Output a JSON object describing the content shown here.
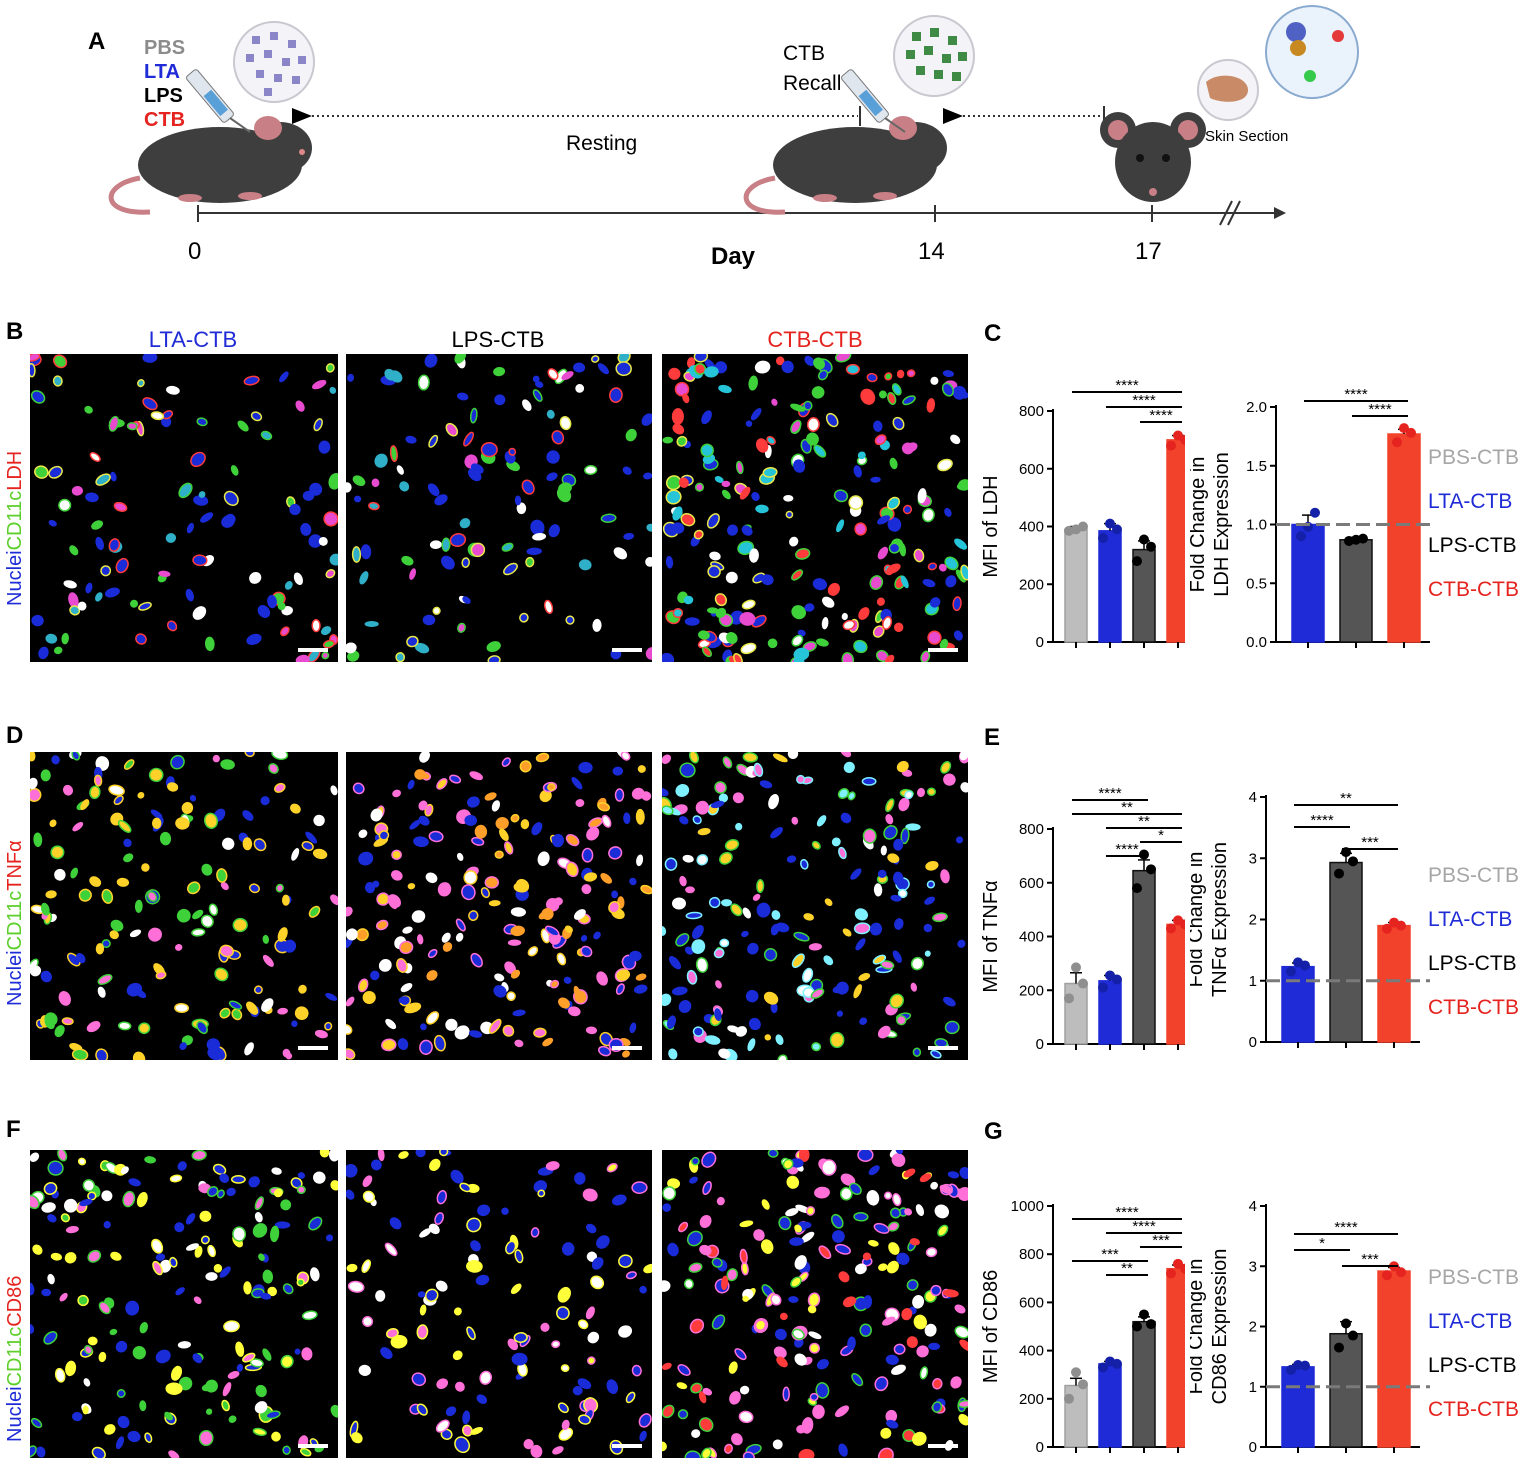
{
  "panelA": {
    "letter": "A",
    "treatments": [
      {
        "label": "PBS",
        "color": "#8c8c8c"
      },
      {
        "label": "LTA",
        "color": "#1f2bd6"
      },
      {
        "label": "LPS",
        "color": "#000000"
      },
      {
        "label": "CTB",
        "color": "#e5231f"
      }
    ],
    "recall_line1": "CTB",
    "recall_line2": "Recall",
    "resting": "Resting",
    "skin_section": "Skin Section",
    "day_label": "Day",
    "ticks": [
      "0",
      "14",
      "17"
    ]
  },
  "panel_letters": {
    "B": "B",
    "C": "C",
    "D": "D",
    "E": "E",
    "F": "F",
    "G": "G"
  },
  "column_titles": [
    {
      "label": "LTA-CTB",
      "color": "#1f2bd6"
    },
    {
      "label": "LPS-CTB",
      "color": "#000000"
    },
    {
      "label": "CTB-CTB",
      "color": "#e5231f"
    }
  ],
  "stain_rows": [
    {
      "nuclei": "Nuclei",
      "cd11c": "CD11c",
      "marker": "LDH"
    },
    {
      "nuclei": "Nuclei",
      "cd11c": "CD11c",
      "marker": "TNFα"
    },
    {
      "nuclei": "Nuclei",
      "cd11c": "CD11c",
      "marker": "CD86"
    }
  ],
  "legend": [
    {
      "label": "PBS-CTB",
      "color": "#a6a6a6"
    },
    {
      "label": "LTA-CTB",
      "color": "#1f2bd6"
    },
    {
      "label": "LPS-CTB",
      "color": "#000000"
    },
    {
      "label": "CTB-CTB",
      "color": "#e5231f"
    }
  ],
  "colors": {
    "PBS": "#bdbdbd",
    "LTA": "#1f2bd6",
    "LPS": "#555555",
    "CTB": "#f2422b"
  },
  "chart_data": [
    {
      "id": "C-mfi",
      "type": "bar",
      "ylabel": "MFI of LDH",
      "ylim": [
        0,
        800
      ],
      "yticks": [
        0,
        200,
        400,
        600,
        800
      ],
      "categories": [
        "PBS-CTB",
        "LTA-CTB",
        "LPS-CTB",
        "CTB-CTB"
      ],
      "values": [
        390,
        385,
        320,
        700
      ],
      "errors": [
        10,
        25,
        30,
        15
      ],
      "points": [
        [
          385,
          400,
          390
        ],
        [
          360,
          390,
          410
        ],
        [
          280,
          330,
          355
        ],
        [
          680,
          700,
          715
        ]
      ],
      "significance": [
        {
          "from": 0,
          "to": 3,
          "label": "****"
        },
        {
          "from": 1,
          "to": 3,
          "label": "****"
        },
        {
          "from": 2,
          "to": 3,
          "label": "****"
        }
      ]
    },
    {
      "id": "C-fold",
      "type": "bar",
      "ylabel": [
        "Fold Change in",
        "LDH Expression"
      ],
      "ylim": [
        0,
        2.0
      ],
      "yticks": [
        "0.0",
        "0.5",
        "1.0",
        "1.5",
        "2.0"
      ],
      "categories": [
        "LTA-CTB",
        "LPS-CTB",
        "CTB-CTB"
      ],
      "values": [
        1.0,
        0.87,
        1.77
      ],
      "errors": [
        0.08,
        0.02,
        0.04
      ],
      "points": [
        [
          0.9,
          1.1,
          0.98
        ],
        [
          0.86,
          0.88,
          0.87
        ],
        [
          1.7,
          1.78,
          1.82
        ]
      ],
      "reference_line": 1.0,
      "significance": [
        {
          "from": 0,
          "to": 2,
          "label": "****"
        },
        {
          "from": 1,
          "to": 2,
          "label": "****"
        }
      ]
    },
    {
      "id": "E-mfi",
      "type": "bar",
      "ylabel": "MFI of TNFα",
      "ylim": [
        0,
        800
      ],
      "yticks": [
        0,
        200,
        400,
        600,
        800
      ],
      "categories": [
        "PBS-CTB",
        "LTA-CTB",
        "LPS-CTB",
        "CTB-CTB"
      ],
      "values": [
        225,
        235,
        645,
        445
      ],
      "errors": [
        40,
        20,
        40,
        15
      ],
      "points": [
        [
          170,
          225,
          285
        ],
        [
          210,
          240,
          255
        ],
        [
          580,
          650,
          705
        ],
        [
          430,
          445,
          460
        ]
      ],
      "significance": [
        {
          "from": 0,
          "to": 2,
          "label": "****"
        },
        {
          "from": 0,
          "to": 3,
          "label": "**"
        },
        {
          "from": 1,
          "to": 3,
          "label": "**"
        },
        {
          "from": 2,
          "to": 3,
          "label": "*"
        },
        {
          "from": 1,
          "to": 2,
          "label": "****"
        }
      ]
    },
    {
      "id": "E-fold",
      "type": "bar",
      "ylabel": [
        "Fold Change in",
        "TNFα Expression"
      ],
      "ylim": [
        0,
        4
      ],
      "yticks": [
        0,
        1,
        2,
        3,
        4
      ],
      "categories": [
        "LTA-CTB",
        "LPS-CTB",
        "CTB-CTB"
      ],
      "values": [
        1.23,
        2.93,
        1.9
      ],
      "errors": [
        0.06,
        0.15,
        0.05
      ],
      "points": [
        [
          1.15,
          1.25,
          1.3
        ],
        [
          2.75,
          2.95,
          3.1
        ],
        [
          1.85,
          1.9,
          1.95
        ]
      ],
      "reference_line": 1.0,
      "significance": [
        {
          "from": 0,
          "to": 2,
          "label": "**"
        },
        {
          "from": 0,
          "to": 1,
          "label": "****"
        },
        {
          "from": 1,
          "to": 2,
          "label": "***"
        }
      ]
    },
    {
      "id": "G-mfi",
      "type": "bar",
      "ylabel": "MFI of CD86",
      "ylim": [
        0,
        1000
      ],
      "yticks": [
        0,
        200,
        400,
        600,
        800,
        1000
      ],
      "categories": [
        "PBS-CTB",
        "LTA-CTB",
        "LPS-CTB",
        "CTB-CTB"
      ],
      "values": [
        255,
        345,
        520,
        740
      ],
      "errors": [
        30,
        10,
        20,
        15
      ],
      "points": [
        [
          200,
          260,
          310
        ],
        [
          330,
          345,
          355
        ],
        [
          500,
          510,
          550
        ],
        [
          720,
          740,
          760
        ]
      ],
      "significance": [
        {
          "from": 0,
          "to": 3,
          "label": "****"
        },
        {
          "from": 1,
          "to": 3,
          "label": "****"
        },
        {
          "from": 2,
          "to": 3,
          "label": "***"
        },
        {
          "from": 0,
          "to": 2,
          "label": "***"
        },
        {
          "from": 1,
          "to": 2,
          "label": "**"
        }
      ]
    },
    {
      "id": "G-fold",
      "type": "bar",
      "ylabel": [
        "Fold Change in",
        "CD86 Expression"
      ],
      "ylim": [
        0,
        4
      ],
      "yticks": [
        0,
        1,
        2,
        3,
        4
      ],
      "categories": [
        "LTA-CTB",
        "LPS-CTB",
        "CTB-CTB"
      ],
      "values": [
        1.33,
        1.88,
        2.92
      ],
      "errors": [
        0.04,
        0.2,
        0.06
      ],
      "points": [
        [
          1.28,
          1.35,
          1.36
        ],
        [
          1.65,
          1.85,
          2.05
        ],
        [
          2.85,
          2.9,
          3.0
        ]
      ],
      "reference_line": 1.0,
      "significance": [
        {
          "from": 0,
          "to": 2,
          "label": "****"
        },
        {
          "from": 0,
          "to": 1,
          "label": "*"
        },
        {
          "from": 1,
          "to": 2,
          "label": "***"
        }
      ]
    }
  ]
}
